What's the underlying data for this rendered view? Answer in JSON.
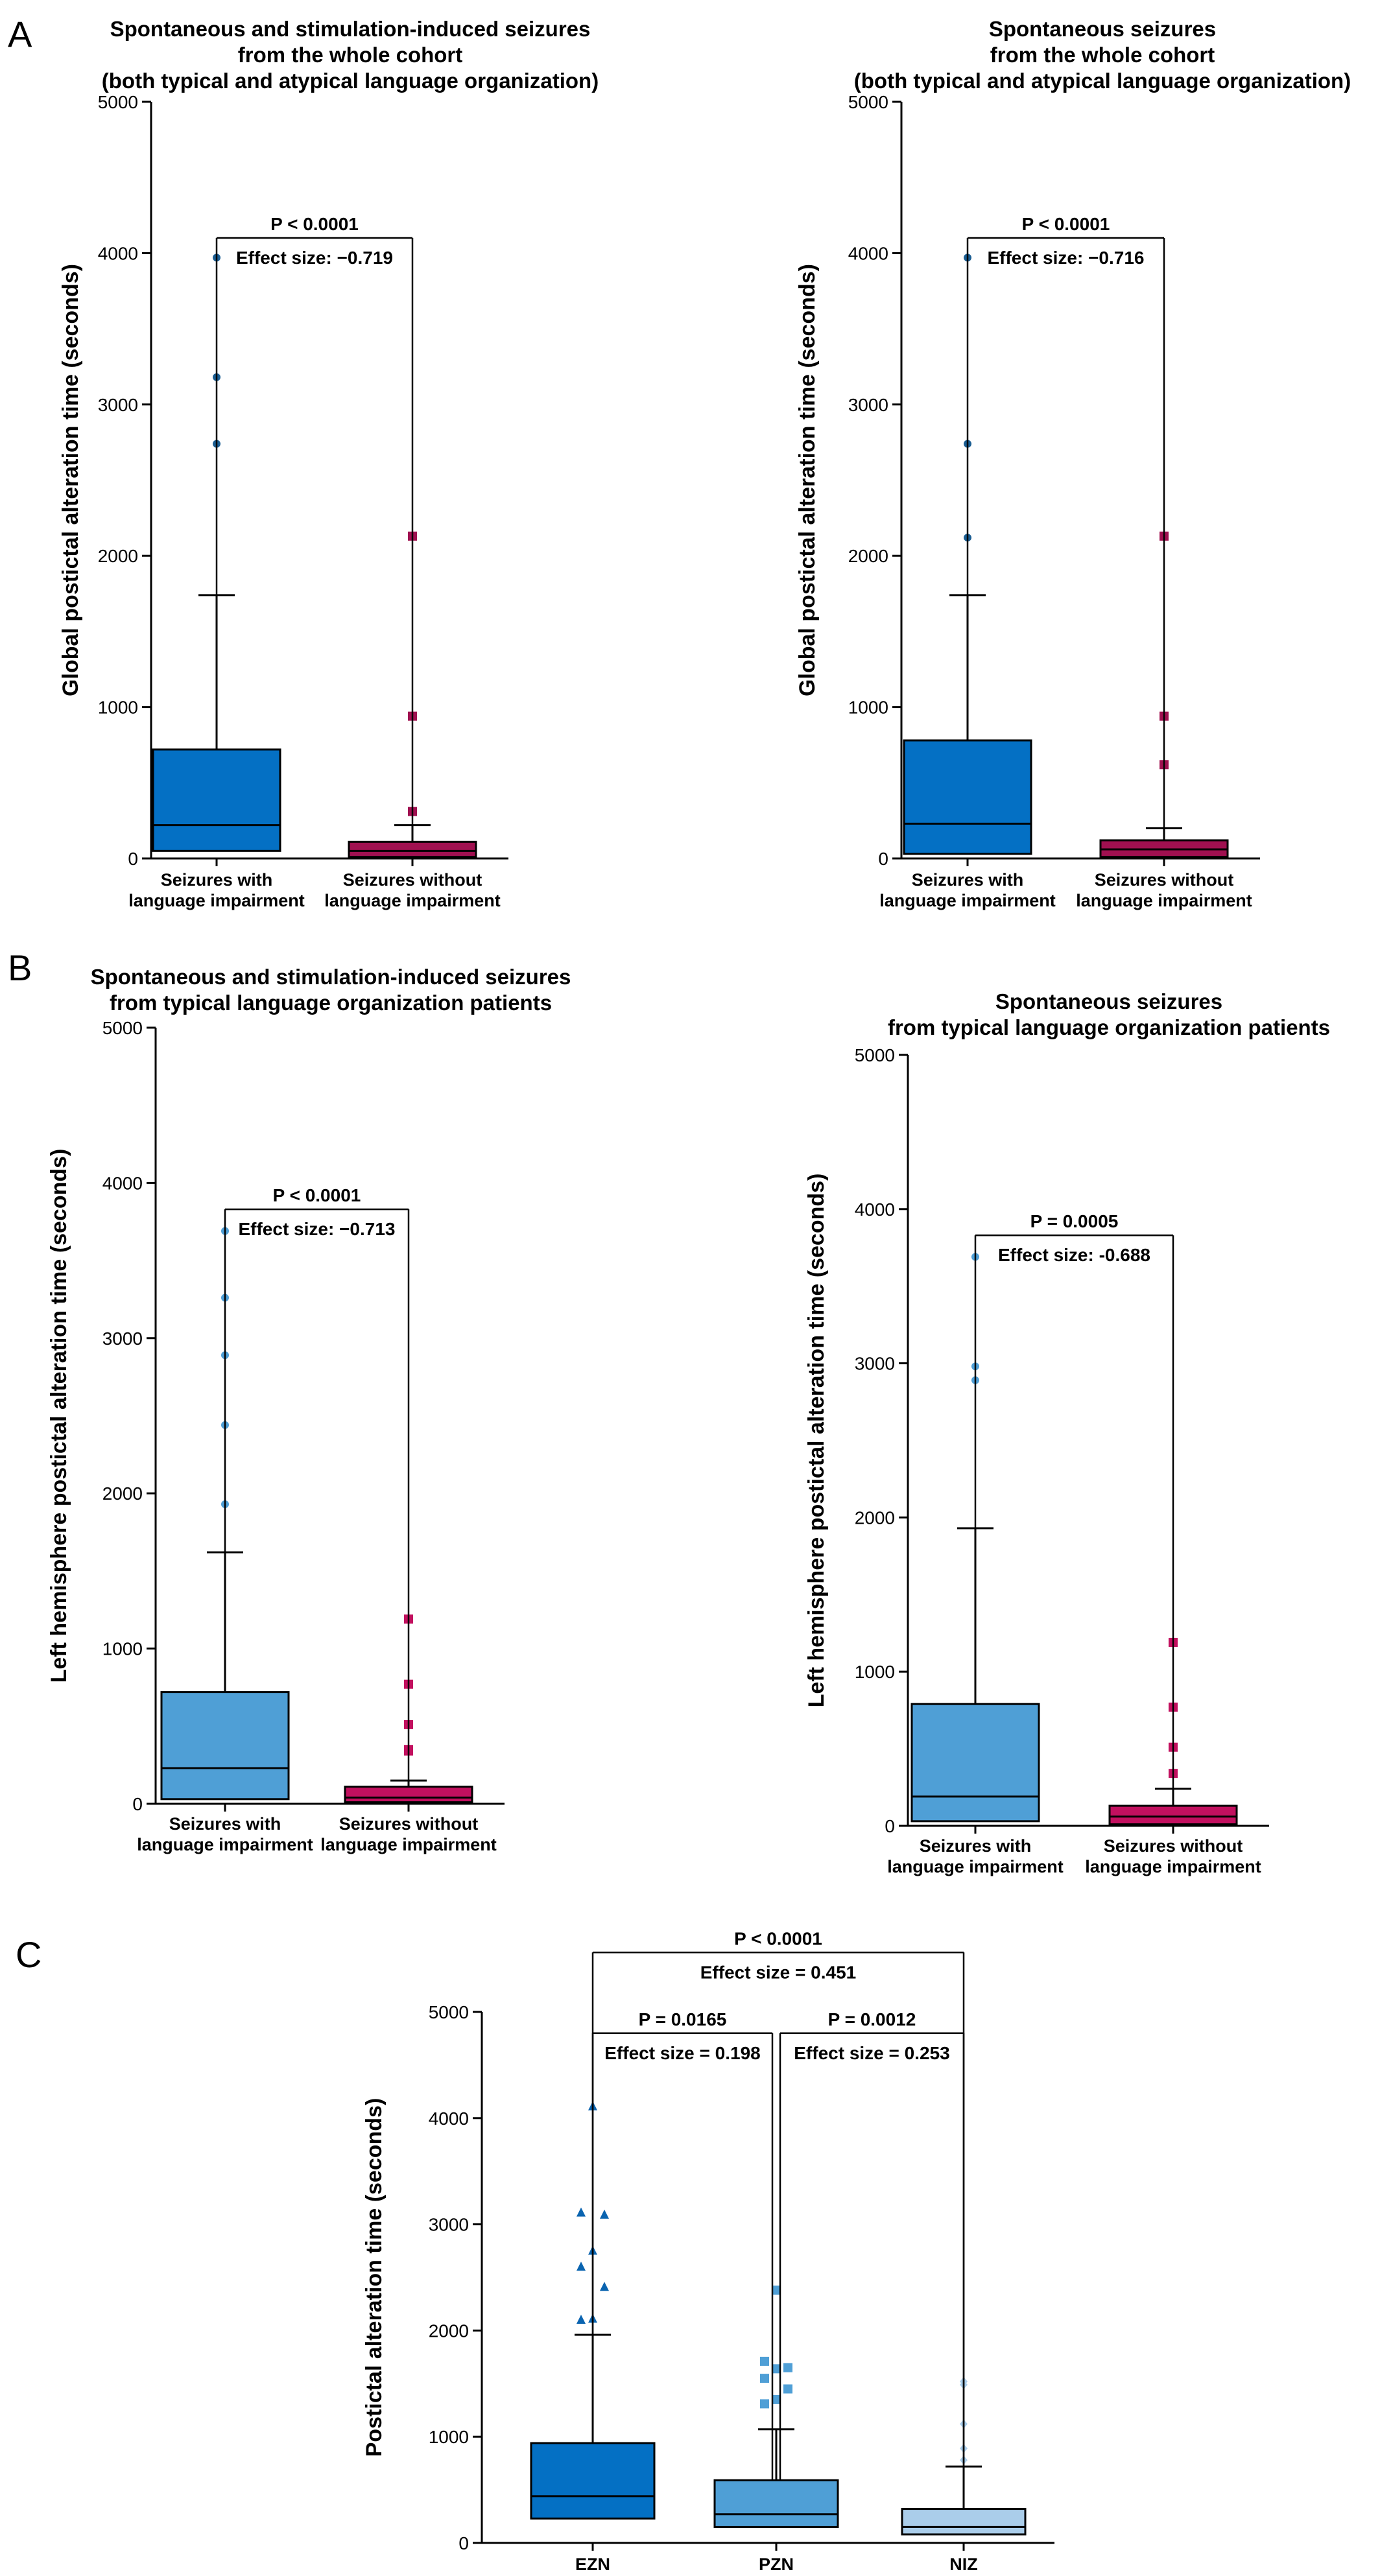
{
  "panel_letters": {
    "A": "A",
    "B": "B",
    "C": "C"
  },
  "colors": {
    "dark_blue": "#0470c4",
    "mid_blue": "#4f9fd6",
    "light_blue": "#aacdea",
    "magenta": "#c2105f",
    "dark_marker": "#1a5d92"
  },
  "chart_data": [
    {
      "id": "A1",
      "type": "box",
      "title": [
        "Spontaneous and stimulation-induced seizures",
        "from the whole cohort",
        "(both typical and atypical language organization)"
      ],
      "ylabel": "Global postictal alteration time (seconds)",
      "ylim": [
        0,
        5000
      ],
      "yticks": [
        0,
        1000,
        2000,
        3000,
        4000,
        5000
      ],
      "categories": [
        [
          "Seizures with",
          "language impairment"
        ],
        [
          "Seizures without",
          "language impairment"
        ]
      ],
      "boxes": [
        {
          "q1": 50,
          "median": 220,
          "q3": 720,
          "whisker_low": 0,
          "whisker_high": 1740,
          "outliers": [
            2740,
            3180,
            3970
          ],
          "color": "#0470c4",
          "marker": "circle"
        },
        {
          "q1": 10,
          "median": 50,
          "q3": 110,
          "whisker_low": 0,
          "whisker_high": 220,
          "outliers": [
            310,
            940,
            2130
          ],
          "color": "#a01050",
          "marker": "square"
        }
      ],
      "annotations": [
        {
          "from": 0,
          "to": 1,
          "level": 4100,
          "p": "P < 0.0001",
          "effect": "Effect size: −0.719"
        }
      ]
    },
    {
      "id": "A2",
      "type": "box",
      "title": [
        "Spontaneous seizures",
        "from the whole cohort",
        "(both typical and atypical language organization)"
      ],
      "ylabel": "Global postictal alteration time (seconds)",
      "ylim": [
        0,
        5000
      ],
      "yticks": [
        0,
        1000,
        2000,
        3000,
        4000,
        5000
      ],
      "categories": [
        [
          "Seizures with",
          "language impairment"
        ],
        [
          "Seizures without",
          "language impairment"
        ]
      ],
      "boxes": [
        {
          "q1": 30,
          "median": 230,
          "q3": 780,
          "whisker_low": 0,
          "whisker_high": 1740,
          "outliers": [
            2120,
            2740,
            3970
          ],
          "color": "#0470c4",
          "marker": "circle"
        },
        {
          "q1": 10,
          "median": 60,
          "q3": 120,
          "whisker_low": 0,
          "whisker_high": 200,
          "outliers": [
            620,
            940,
            2130
          ],
          "color": "#a01050",
          "marker": "square"
        }
      ],
      "annotations": [
        {
          "from": 0,
          "to": 1,
          "level": 4100,
          "p": "P < 0.0001",
          "effect": "Effect size: −0.716"
        }
      ]
    },
    {
      "id": "B1",
      "type": "box",
      "title": [
        "Spontaneous and stimulation-induced seizures",
        "from typical language organization patients"
      ],
      "ylabel": "Left hemisphere postictal alteration time (seconds)",
      "ylim": [
        0,
        5000
      ],
      "yticks": [
        0,
        1000,
        2000,
        3000,
        4000,
        5000
      ],
      "categories": [
        [
          "Seizures with",
          "language impairment"
        ],
        [
          "Seizures without",
          "language impairment"
        ]
      ],
      "boxes": [
        {
          "q1": 30,
          "median": 230,
          "q3": 720,
          "whisker_low": 0,
          "whisker_high": 1620,
          "outliers": [
            1930,
            2440,
            2890,
            3260,
            3690
          ],
          "color": "#4f9fd6",
          "marker": "circle"
        },
        {
          "q1": 10,
          "median": 40,
          "q3": 110,
          "whisker_low": 0,
          "whisker_high": 150,
          "outliers": [
            340,
            350,
            510,
            770,
            1190
          ],
          "color": "#c2105f",
          "marker": "square"
        }
      ],
      "annotations": [
        {
          "from": 0,
          "to": 1,
          "level": 3830,
          "p": "P < 0.0001",
          "effect": "Effect size: −0.713"
        }
      ]
    },
    {
      "id": "B2",
      "type": "box",
      "title": [
        "Spontaneous seizures",
        "from typical language organization patients"
      ],
      "ylabel": "Left hemisphere postictal alteration time (seconds)",
      "ylim": [
        0,
        5000
      ],
      "yticks": [
        0,
        1000,
        2000,
        3000,
        4000,
        5000
      ],
      "categories": [
        [
          "Seizures with",
          "language impairment"
        ],
        [
          "Seizures without",
          "language impairment"
        ]
      ],
      "boxes": [
        {
          "q1": 30,
          "median": 190,
          "q3": 790,
          "whisker_low": 0,
          "whisker_high": 1930,
          "outliers": [
            2890,
            2980,
            3690
          ],
          "color": "#4f9fd6",
          "marker": "circle"
        },
        {
          "q1": 10,
          "median": 60,
          "q3": 130,
          "whisker_low": 0,
          "whisker_high": 240,
          "outliers": [
            340,
            510,
            770,
            1190
          ],
          "color": "#c2105f",
          "marker": "square"
        }
      ],
      "annotations": [
        {
          "from": 0,
          "to": 1,
          "level": 3830,
          "p": "P = 0.0005",
          "effect": "Effect size: -0.688"
        }
      ]
    },
    {
      "id": "C",
      "type": "box",
      "title": [],
      "ylabel": "Postictal alteration time (seconds)",
      "ylim": [
        0,
        5000
      ],
      "yticks": [
        0,
        1000,
        2000,
        3000,
        4000,
        5000
      ],
      "categories": [
        [
          "EZN"
        ],
        [
          "PZN"
        ],
        [
          "NIZ"
        ]
      ],
      "boxes": [
        {
          "q1": 230,
          "median": 440,
          "q3": 940,
          "whisker_low": 0,
          "whisker_high": 1960,
          "outliers": [
            2100,
            2110,
            2410,
            2600,
            2750,
            3090,
            3110,
            4110
          ],
          "color": "#0470c4",
          "marker": "triangle"
        },
        {
          "q1": 150,
          "median": 270,
          "q3": 590,
          "whisker_low": 0,
          "whisker_high": 1070,
          "outliers": [
            1310,
            1350,
            1450,
            1550,
            1640,
            1650,
            1710,
            2380
          ],
          "color": "#4f9fd6",
          "marker": "square"
        },
        {
          "q1": 80,
          "median": 150,
          "q3": 320,
          "whisker_low": 0,
          "whisker_high": 720,
          "outliers": [
            780,
            890,
            1120,
            1490,
            1520
          ],
          "color": "#aacdea",
          "marker": "diamond"
        }
      ],
      "annotations": [
        {
          "from": 0,
          "to": 1,
          "level": 4800,
          "p": "P = 0.0165",
          "effect": "Effect size = 0.198"
        },
        {
          "from": 1,
          "to": 2,
          "level": 4800,
          "p": "P = 0.0012",
          "effect": "Effect size = 0.253"
        },
        {
          "from": 0,
          "to": 2,
          "level": 5560,
          "p": "P < 0.0001",
          "effect": "Effect size = 0.451"
        }
      ]
    }
  ]
}
